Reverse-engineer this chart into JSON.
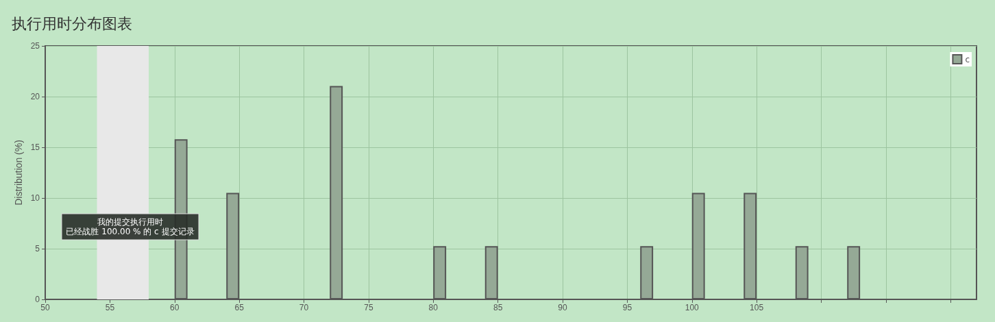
{
  "chart_data": {
    "type": "bar",
    "title": "执行用时分布图表",
    "ylabel": "Distribution (%)",
    "x": [
      60.5,
      64.5,
      72.5,
      80.5,
      84.5,
      96.5,
      100.5,
      104.5,
      108.5,
      112.5
    ],
    "series": [
      {
        "name": "c",
        "color": "#95a996",
        "values": [
          15.8,
          10.5,
          21.05,
          5.26,
          5.26,
          5.26,
          10.5,
          10.5,
          5.26,
          5.26
        ]
      }
    ],
    "xlim": [
      50,
      122
    ],
    "xticks": [
      50,
      55,
      60,
      65,
      70,
      75,
      80,
      85,
      90,
      95,
      100,
      105,
      {
        "value": 110,
        "label": null
      },
      {
        "value": 115,
        "label": null
      },
      {
        "value": 120,
        "label": null
      }
    ],
    "ylim": [
      0,
      25
    ],
    "yticks": [
      0,
      5,
      10,
      15,
      20,
      25
    ],
    "bands": [
      {
        "axis": "x",
        "from": 54,
        "to": 58,
        "label": null,
        "color": "#e8e8e8"
      }
    ],
    "annotations": [
      "我的提交执行用时",
      "已经战胜 100.00 % 的 c 提交记录"
    ],
    "grid": true,
    "legend": "top right"
  }
}
